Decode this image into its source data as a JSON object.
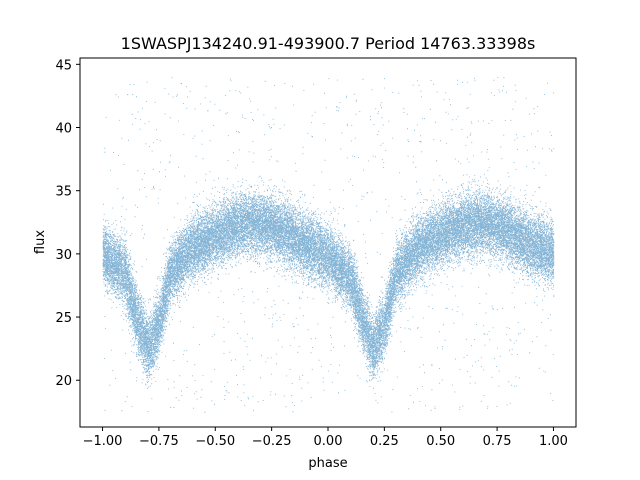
{
  "chart_data": {
    "type": "scatter",
    "title": "1SWASPJ134240.91-493900.7 Period 14763.33398s",
    "xlabel": "phase",
    "ylabel": "flux",
    "xlim": [
      -1.1,
      1.1
    ],
    "ylim": [
      16.3,
      45.5
    ],
    "xticks": [
      -1.0,
      -0.75,
      -0.5,
      -0.25,
      0.0,
      0.25,
      0.5,
      0.75,
      1.0
    ],
    "xtick_labels": [
      "−1.00",
      "−0.75",
      "−0.50",
      "−0.25",
      "0.00",
      "0.25",
      "0.50",
      "0.75",
      "1.00"
    ],
    "yticks": [
      20,
      25,
      30,
      35,
      40,
      45
    ],
    "ytick_labels": [
      "20",
      "25",
      "30",
      "35",
      "40",
      "45"
    ],
    "grid": false,
    "marker_color": "#1f77b4",
    "phase_range": [
      -1.0,
      1.0
    ],
    "point_count_estimate": 60000,
    "light_curve_profile": {
      "phase": [
        -1.0,
        -0.9,
        -0.85,
        -0.8,
        -0.75,
        -0.7,
        -0.6,
        -0.5,
        -0.4,
        -0.3,
        -0.2,
        -0.1,
        0.0,
        0.1,
        0.15,
        0.2,
        0.25,
        0.3,
        0.4,
        0.5,
        0.6,
        0.7,
        0.8,
        0.9,
        1.0
      ],
      "flux_median": [
        30.0,
        28.5,
        25.0,
        22.5,
        24.5,
        28.5,
        30.5,
        31.5,
        32.3,
        32.5,
        31.8,
        30.8,
        29.8,
        28.0,
        25.0,
        22.5,
        24.5,
        28.5,
        30.5,
        31.5,
        32.3,
        32.5,
        31.8,
        30.8,
        30.0
      ],
      "flux_scatter": 1.6,
      "outlier_range": [
        17.5,
        44.0
      ]
    }
  }
}
